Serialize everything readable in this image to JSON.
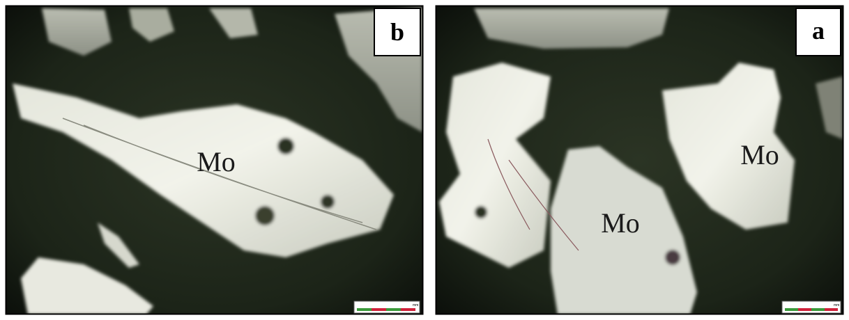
{
  "panels": [
    {
      "label": "b",
      "annotations": [
        "Mo"
      ],
      "scale_unit": "mm"
    },
    {
      "label": "a",
      "annotations": [
        "Mo",
        "Mo"
      ],
      "scale_unit": "mm"
    }
  ]
}
